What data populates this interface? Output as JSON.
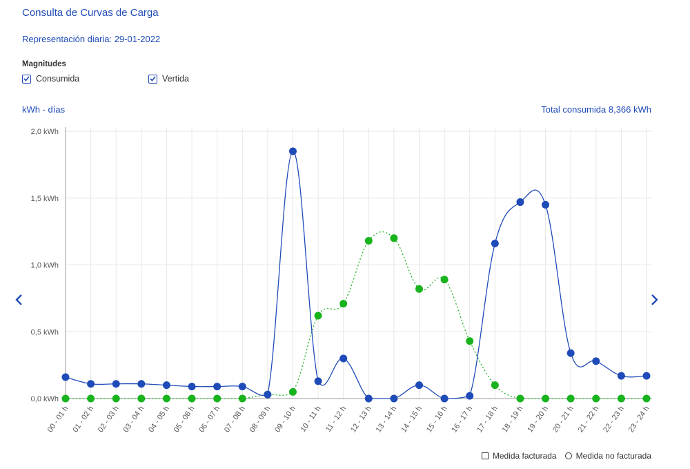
{
  "header": {
    "title": "Consulta de Curvas de Carga",
    "subtitle": "Representación diaria: 29-01-2022"
  },
  "magnitudes": {
    "label": "Magnitudes",
    "options": [
      {
        "label": "Consumida",
        "checked": true
      },
      {
        "label": "Vertida",
        "checked": true
      }
    ]
  },
  "units_label": "kWh - días",
  "total_label": "Total consumida  8,366 kWh",
  "legend": {
    "facturada": "Medida facturada",
    "no_facturada": "Medida no facturada"
  },
  "colors": {
    "accent": "#1f4bb8",
    "consumida": "#1f4bb8",
    "vertida": "#18b31d",
    "grid": "#e6e6e6"
  },
  "icons": {
    "prev": "chevron-left-icon",
    "next": "chevron-right-icon",
    "check": "checkmark-icon"
  },
  "chart_data": {
    "type": "line",
    "ylim": [
      0,
      2
    ],
    "yticks": [
      "0,0 kWh",
      "0,5 kWh",
      "1,0 kWh",
      "1,5 kWh",
      "2,0 kWh"
    ],
    "ytick_values": [
      0,
      0.5,
      1.0,
      1.5,
      2.0
    ],
    "categories": [
      "00 - 01 h",
      "01 - 02 h",
      "02 - 03 h",
      "03 - 04 h",
      "04 - 05 h",
      "05 - 06 h",
      "06 - 07 h",
      "07 - 08 h",
      "08 - 09 h",
      "09 - 10 h",
      "10 - 11 h",
      "11 - 12 h",
      "12 - 13 h",
      "13 - 14 h",
      "14 - 15 h",
      "15 - 16 h",
      "16 - 17 h",
      "17 - 18 h",
      "18 - 19 h",
      "19 - 20 h",
      "20 - 21 h",
      "21 - 22 h",
      "22 - 23 h",
      "23 - 24 h"
    ],
    "series": [
      {
        "key": "consumida",
        "values": [
          0.16,
          0.11,
          0.11,
          0.11,
          0.1,
          0.09,
          0.09,
          0.09,
          0.03,
          1.85,
          0.13,
          0.3,
          0.0,
          0.0,
          0.1,
          0.0,
          0.02,
          1.16,
          1.47,
          1.45,
          0.34,
          0.28,
          0.17,
          0.17
        ]
      },
      {
        "key": "vertida",
        "values": [
          0,
          0,
          0,
          0,
          0,
          0,
          0,
          0,
          0.03,
          0.05,
          0.62,
          0.71,
          1.18,
          1.2,
          0.82,
          0.89,
          0.43,
          0.1,
          0,
          0,
          0,
          0,
          0,
          0
        ]
      }
    ],
    "grid": true
  }
}
